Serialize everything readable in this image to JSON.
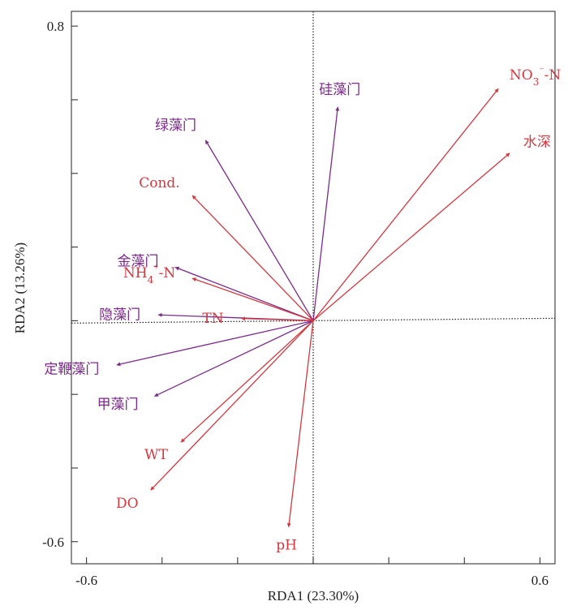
{
  "chart_data": {
    "type": "biplot",
    "xlabel": "RDA1 (23.30%)",
    "ylabel": "RDA2 (13.26%)",
    "xlim": [
      -0.64,
      0.64
    ],
    "ylim": [
      -0.66,
      0.84
    ],
    "xticks": [
      {
        "value": -0.6,
        "label": "-0.6"
      },
      {
        "value": 0.6,
        "label": "0.6"
      }
    ],
    "yticks": [
      {
        "value": 0.8,
        "label": "0.8"
      },
      {
        "value": -0.6,
        "label": "-0.6"
      }
    ],
    "minor_xticks": [
      -0.6,
      -0.4,
      -0.2,
      0,
      0.2,
      0.4,
      0.6
    ],
    "minor_yticks": [
      -0.6,
      -0.4,
      -0.2,
      0,
      0.2,
      0.4,
      0.6,
      0.8
    ],
    "grid": false,
    "series": [
      {
        "colour": "#7b2a8a",
        "vectors": [
          {
            "label": "硅藻门",
            "x": 0.065,
            "y": 0.58
          },
          {
            "label": "绿藻门",
            "x": -0.285,
            "y": 0.49
          },
          {
            "label": "金藻门",
            "x": -0.365,
            "y": 0.145
          },
          {
            "label": "隐藻门",
            "x": -0.41,
            "y": 0.016
          },
          {
            "label": "定鞭藻门",
            "x": -0.52,
            "y": -0.12
          },
          {
            "label": "甲藻门",
            "x": -0.42,
            "y": -0.205
          }
        ]
      },
      {
        "colour": "#d1383f",
        "vectors": [
          {
            "label": "NO3⁻-N",
            "x": 0.49,
            "y": 0.63
          },
          {
            "label": "水深",
            "x": 0.52,
            "y": 0.455
          },
          {
            "label": "Cond.",
            "x": -0.32,
            "y": 0.34
          },
          {
            "label": "NH4⁺-N",
            "x": -0.32,
            "y": 0.115
          },
          {
            "label": "TN",
            "x": -0.19,
            "y": 0.006
          },
          {
            "label": "WT",
            "x": -0.35,
            "y": -0.33
          },
          {
            "label": "DO",
            "x": -0.43,
            "y": -0.46
          },
          {
            "label": "pH",
            "x": -0.065,
            "y": -0.56
          }
        ]
      }
    ]
  }
}
